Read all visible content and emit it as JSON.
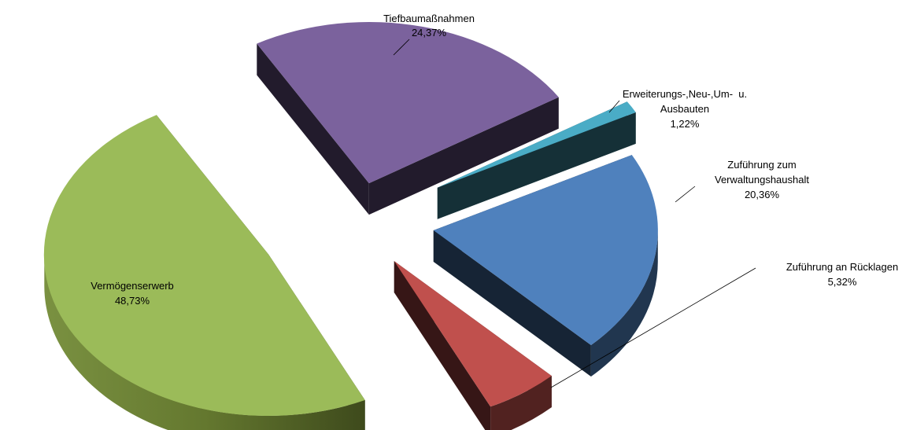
{
  "chart_data": {
    "type": "pie",
    "style": "3d-exploded",
    "title": "",
    "legend": "none",
    "slices": [
      {
        "label": "Tiefbaumaßnahmen",
        "value": 24.37,
        "value_label": "24,37%",
        "color": "#7b629d"
      },
      {
        "label": "Erweiterungs-,Neu-,Um-  u. Ausbauten",
        "value": 1.22,
        "value_label": "1,22%",
        "color": "#4aacc6"
      },
      {
        "label": "Zuführung zum Verwaltungshaushalt",
        "value": 20.36,
        "value_label": "20,36%",
        "color": "#4f81bd"
      },
      {
        "label": "Zuführung an Rücklagen",
        "value": 5.32,
        "value_label": "5,32%",
        "color": "#c0504d"
      },
      {
        "label": "Vermögenserwerb",
        "value": 48.73,
        "value_label": "48,73%",
        "color": "#9bbb59"
      }
    ],
    "label_lines": [
      [
        "Tiefbaumaßnahmen"
      ],
      [
        "Erweiterungs-,Neu-,Um-  u.",
        "Ausbauten"
      ],
      [
        "Zuführung zum",
        "Verwaltungshaushalt"
      ],
      [
        "Zuführung an Rücklagen"
      ],
      [
        "Vermögenserwerb"
      ]
    ]
  }
}
